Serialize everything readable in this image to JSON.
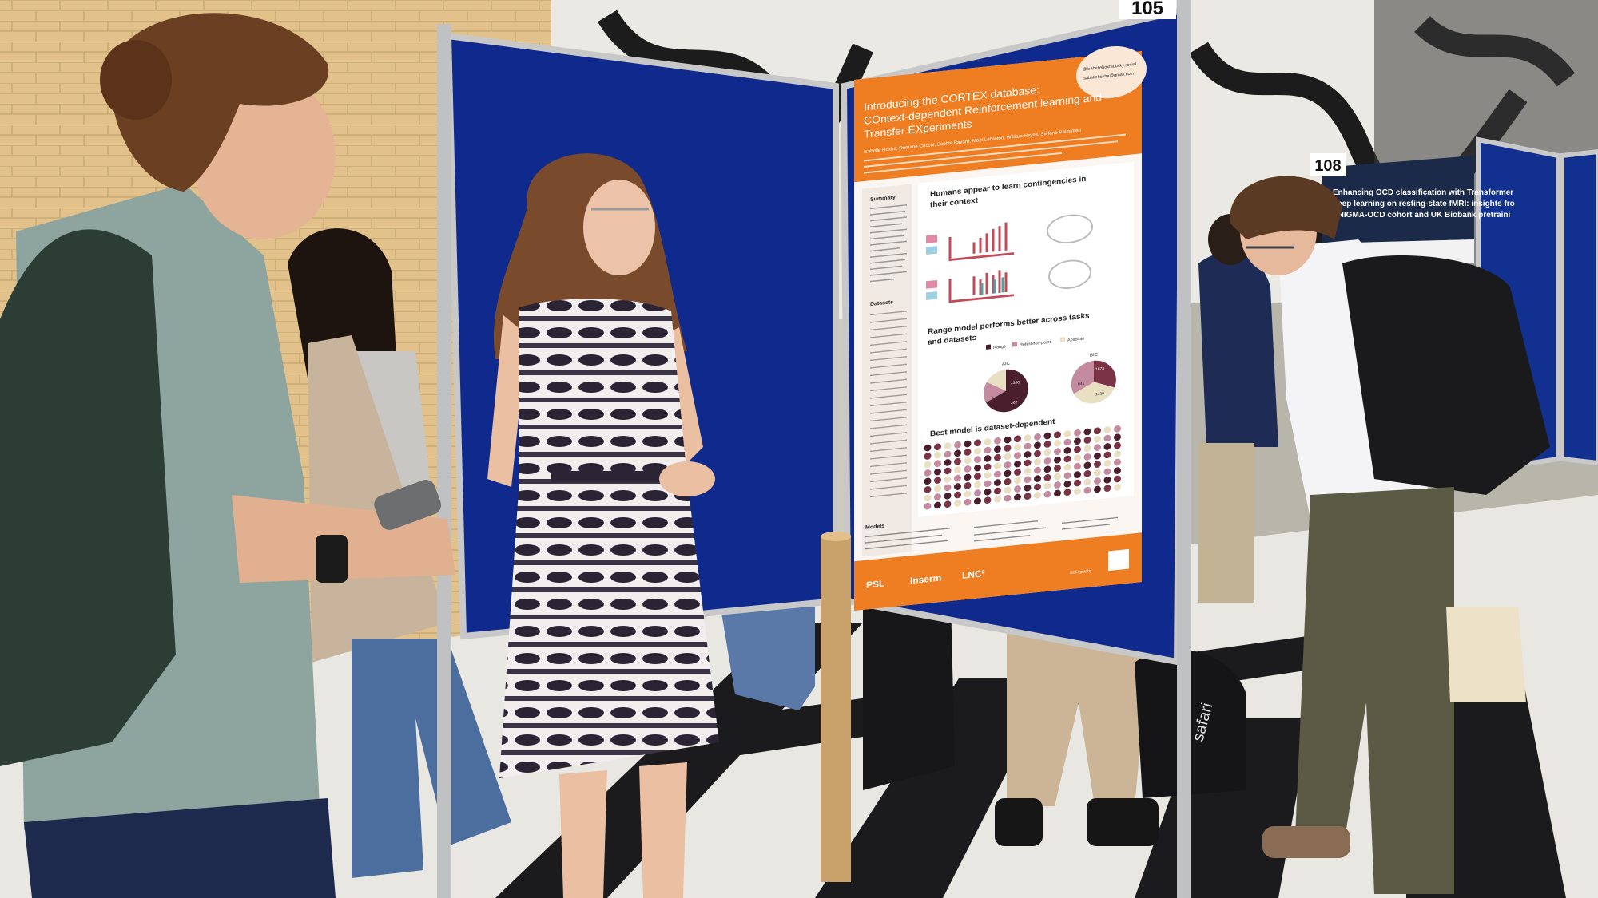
{
  "board_numbers": [
    "105",
    "108"
  ],
  "poster": {
    "title": [
      "Introducing the CORTEX database:",
      "COntext-dependent Reinforcement learning and",
      "Transfer EXperiments"
    ],
    "authors": "Isabelle Hoxha, Romane Cecchi, Sophie Bavard, Maël Lebreton, William Hayes, Stefano Palminteri",
    "contact": [
      "@isabellehoxha.bsky.social",
      "isabellehoxha@gmail.com"
    ],
    "sections": {
      "summary": "Summary",
      "datasets": "Datasets",
      "models": "Models"
    },
    "headings": [
      [
        "Humans appear to learn contingencies in",
        "their context"
      ],
      [
        "Range model performs better across tasks",
        "and datasets"
      ],
      [
        "Best model is dataset-dependent"
      ]
    ],
    "legend": [
      "Range",
      "Reference-point",
      "Absolute"
    ],
    "pies": [
      {
        "label": "AIC",
        "numbers": [
          "2358",
          "642",
          "362"
        ]
      },
      {
        "label": "BIC",
        "numbers": [
          "1673",
          "641",
          "1439"
        ]
      }
    ],
    "logos": [
      "PSL",
      "Inserm",
      "LNC²"
    ],
    "footer": "Bibliography"
  },
  "second_poster": {
    "title": [
      "Enhancing OCD classification with Transformer",
      "deep learning on resting-state fMRI: insights fro",
      "ENIGMA-OCD cohort and UK Biobank pretraini"
    ]
  },
  "bag_text": "safari"
}
